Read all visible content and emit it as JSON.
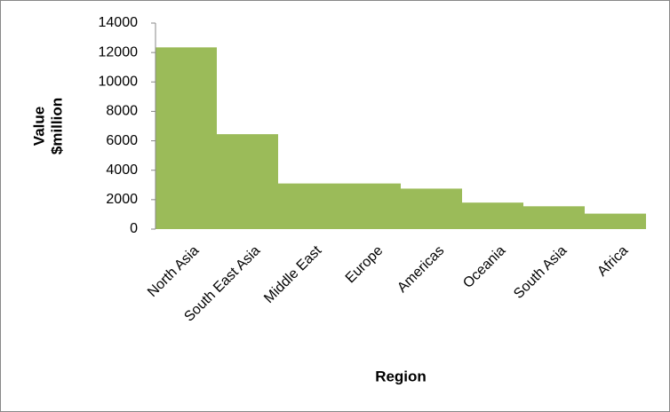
{
  "chart_data": {
    "type": "bar",
    "xlabel": "Region",
    "ylabel": [
      "Value",
      "$million"
    ],
    "categories": [
      "North Asia",
      "South East Asia",
      "Middle East",
      "Europe",
      "Americas",
      "Oceania",
      "South Asia",
      "Africa"
    ],
    "values": [
      12350,
      6450,
      3100,
      3100,
      2750,
      1800,
      1550,
      1050
    ],
    "color": "#9bbb59",
    "ylim": [
      0,
      14000
    ],
    "yticks": [
      0,
      2000,
      4000,
      6000,
      8000,
      10000,
      12000,
      14000
    ],
    "grid": false
  }
}
